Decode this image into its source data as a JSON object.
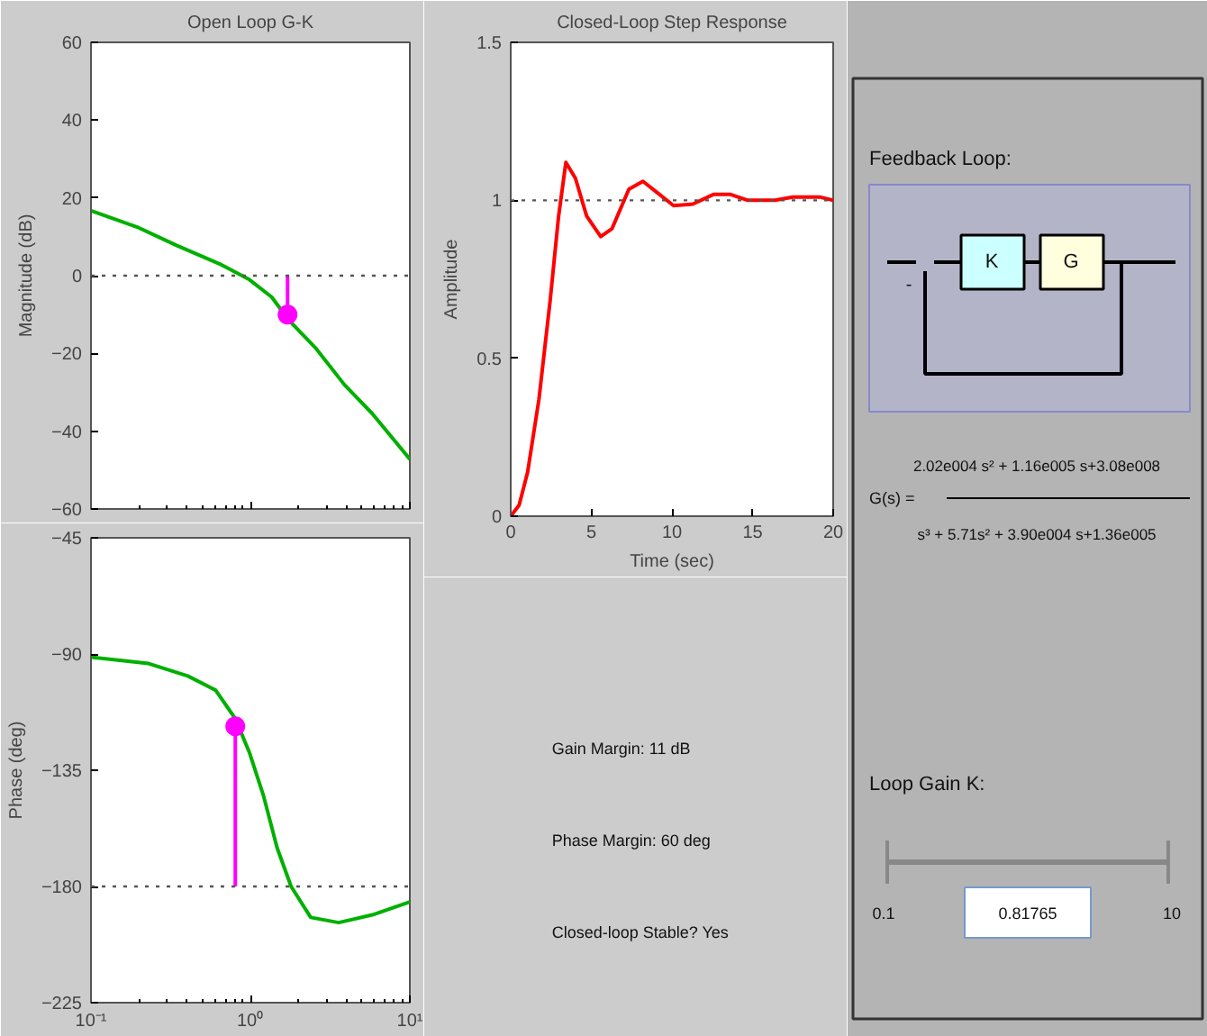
{
  "chart_data": [
    {
      "type": "line",
      "title": "Open Loop G-K",
      "ylabel": "Magnitude (dB)",
      "log": "x",
      "xlim": [
        0.1,
        10
      ],
      "xticks": [
        0.1,
        1,
        10
      ],
      "ylim": [
        -60,
        60
      ],
      "yticks": [
        -60,
        -40,
        -20,
        0,
        20,
        40,
        60
      ],
      "tick_labels": "y",
      "ref_lines": [
        {
          "axis": "y",
          "value": 0,
          "color": "#555555",
          "line_style": "dotted"
        }
      ],
      "series": [
        {
          "type": "line",
          "color": "#00b000",
          "x": [
            0.1,
            0.195,
            0.344,
            0.658,
            0.984,
            1.36,
            1.73,
            2.59,
            3.88,
            5.82,
            10
          ],
          "values": [
            16.7,
            12.5,
            7.8,
            2.8,
            -1,
            -5.5,
            -11.3,
            -18.8,
            -28,
            -35.5,
            -47.2
          ]
        },
        {
          "type": "line",
          "color": "#ff00ff",
          "x": [
            1.71,
            1.71
          ],
          "values": [
            0,
            -10
          ]
        },
        {
          "type": "scatter",
          "marker": "circle",
          "color": "#ff00ff",
          "x": [
            1.71
          ],
          "values": [
            -10
          ]
        }
      ]
    },
    {
      "type": "line",
      "ylabel": "Phase (deg)",
      "log": "x",
      "xlim": [
        0.1,
        10
      ],
      "xticks": [
        {
          "value": 0.1,
          "label": "10⁻¹"
        },
        {
          "value": 1,
          "label": "10⁰"
        },
        {
          "value": 10,
          "label": "10¹"
        }
      ],
      "ylim": [
        -225,
        -45
      ],
      "yticks": [
        -225,
        -180,
        -135,
        -90,
        -45
      ],
      "ref_lines": [
        {
          "axis": "y",
          "value": -180,
          "color": "#555555",
          "line_style": "dotted"
        }
      ],
      "series": [
        {
          "type": "line",
          "color": "#00b000",
          "x": [
            0.1,
            0.23,
            0.405,
            0.605,
            0.804,
            0.984,
            1.21,
            1.47,
            1.8,
            2.39,
            3.58,
            5.82,
            10
          ],
          "values": [
            -91.2,
            -93.7,
            -98.5,
            -104,
            -115,
            -128,
            -145,
            -165,
            -180,
            -192,
            -194,
            -191,
            -186
          ]
        },
        {
          "type": "line",
          "color": "#ff00ff",
          "x": [
            0.804,
            0.804
          ],
          "values": [
            -180,
            -118
          ]
        },
        {
          "type": "scatter",
          "marker": "circle",
          "color": "#ff00ff",
          "x": [
            0.804
          ],
          "values": [
            -118
          ]
        }
      ]
    },
    {
      "type": "line",
      "title": "Closed-Loop Step Response",
      "xlabel": "Time (sec)",
      "ylabel": "Amplitude",
      "xlim": [
        0,
        20
      ],
      "xticks": [
        0,
        5,
        10,
        15,
        20
      ],
      "ylim": [
        0,
        1.5
      ],
      "yticks": [
        0,
        0.5,
        1,
        1.5
      ],
      "ref_lines": [
        {
          "axis": "y",
          "value": 1,
          "color": "#555555",
          "line_style": "dotted"
        }
      ],
      "series": [
        {
          "type": "line",
          "color": "#ff0000",
          "x": [
            0,
            0.52,
            1.05,
            1.75,
            2.44,
            2.97,
            3.42,
            4.01,
            4.71,
            5.58,
            6.28,
            7.33,
            8.2,
            9.07,
            10.1,
            11.3,
            12.6,
            13.6,
            14.7,
            16.4,
            17.5,
            19.2,
            20
          ],
          "values": [
            0,
            0.035,
            0.14,
            0.37,
            0.68,
            0.95,
            1.12,
            1.07,
            0.95,
            0.885,
            0.91,
            1.035,
            1.06,
            1.025,
            0.983,
            0.988,
            1.019,
            1.019,
            1.0,
            1.0,
            1.01,
            1.01,
            1.0
          ]
        }
      ]
    },
    {
      "type": "other",
      "annotations": [
        "Gain Margin:  11 dB",
        "Phase Margin:  60 deg",
        "Closed-loop Stable?  Yes"
      ]
    },
    {
      "type": "other",
      "annotations": [
        "Feedback Loop:",
        "K",
        "G",
        "-",
        "G(s) =",
        "2.02e004 s² + 1.16e005 s+3.08e008",
        "s³ + 5.71s² + 3.90e004 s+1.36e005",
        "Loop Gain K:",
        "0.1",
        "0.81765",
        "10"
      ]
    }
  ]
}
